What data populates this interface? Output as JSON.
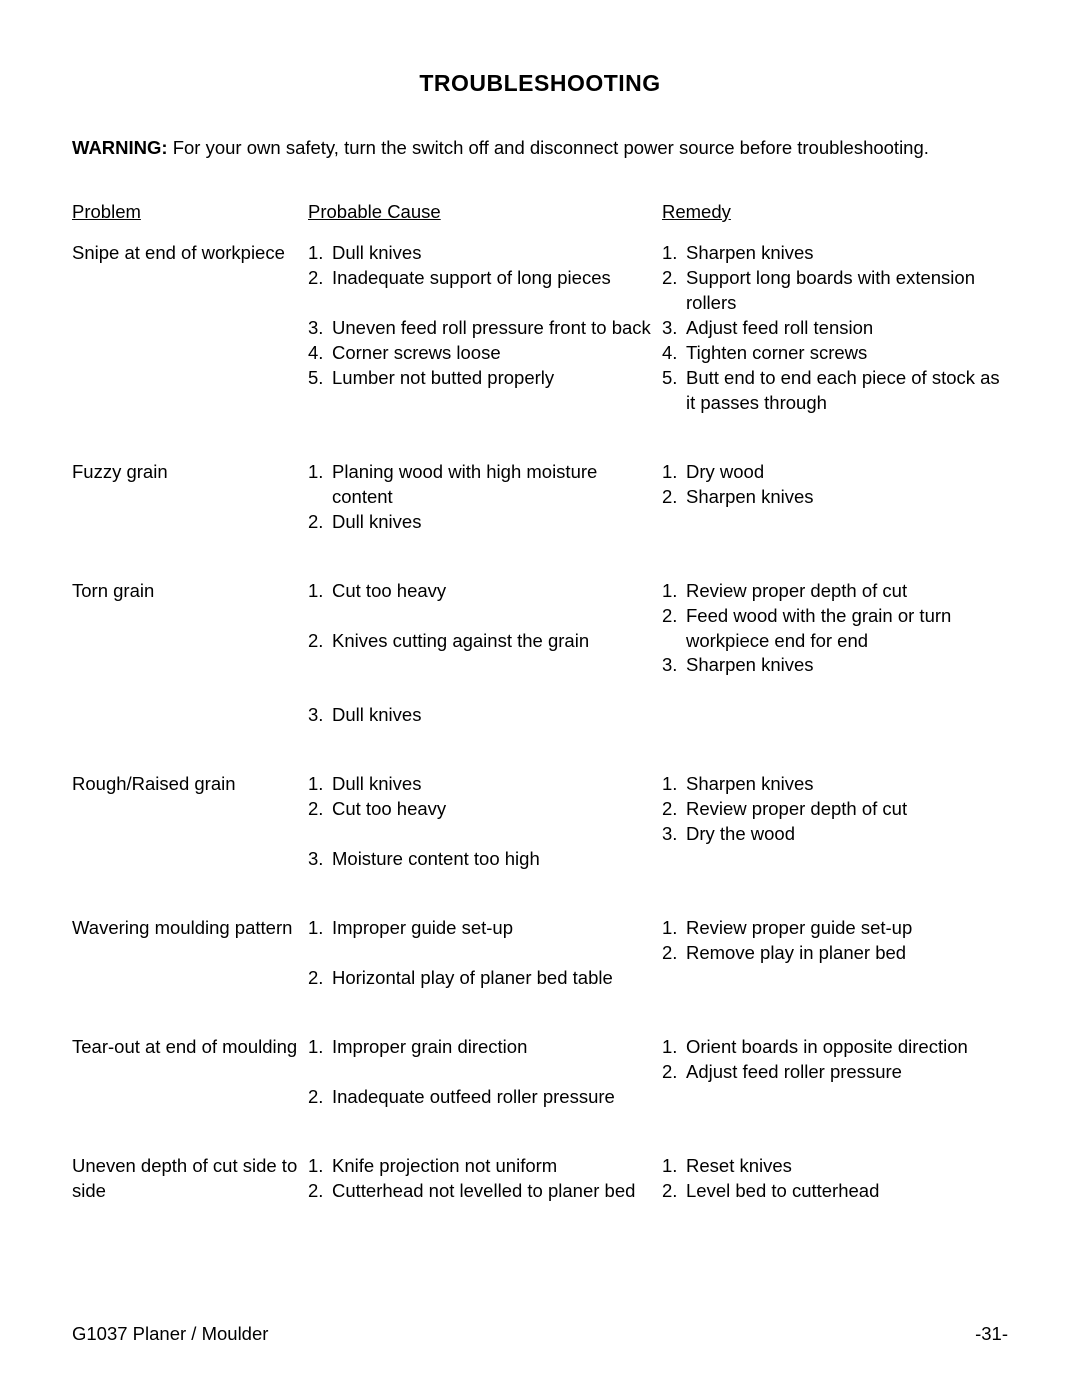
{
  "title": "TROUBLESHOOTING",
  "warning_label": "WARNING:",
  "warning_text": " For your own safety, turn the switch off and disconnect power source before troubleshooting.",
  "headers": {
    "problem": "Problem",
    "cause": "Probable Cause",
    "remedy": "Remedy"
  },
  "rows": [
    {
      "problem": "Snipe at end of workpiece",
      "causes": [
        "Dull knives",
        "Inadequate support of long pieces",
        "",
        "Uneven feed roll pressure front to back",
        "Corner screws loose",
        "Lumber not butted properly"
      ],
      "remedies": [
        "Sharpen knives",
        "Support long boards with extension rollers",
        "Adjust feed roll tension",
        "Tighten corner screws",
        "Butt end to end each piece of stock as it passes through"
      ]
    },
    {
      "problem": "Fuzzy grain",
      "causes": [
        "Planing wood with high moisture content",
        "Dull knives"
      ],
      "remedies": [
        "Dry wood",
        "Sharpen knives"
      ]
    },
    {
      "problem": "Torn grain",
      "causes": [
        "Cut too heavy",
        "",
        "Knives cutting against the grain",
        "",
        "",
        "Dull knives"
      ],
      "remedies": [
        "Review proper depth of cut",
        "Feed wood with the grain or turn workpiece end for end",
        "Sharpen knives"
      ]
    },
    {
      "problem": "Rough/Raised grain",
      "causes": [
        "Dull knives",
        "Cut too heavy",
        "",
        "Moisture content too high"
      ],
      "remedies": [
        "Sharpen knives",
        "Review proper depth of cut",
        "Dry the wood"
      ]
    },
    {
      "problem": "Wavering moulding pattern",
      "causes": [
        "Improper guide set-up",
        "",
        "Horizontal play of planer bed table"
      ],
      "remedies": [
        "Review proper guide set-up",
        "Remove play in planer bed"
      ]
    },
    {
      "problem": "Tear-out at end of moulding",
      "causes": [
        "Improper grain direction",
        "",
        "Inadequate outfeed roller pressure"
      ],
      "remedies": [
        "Orient boards in opposite direction",
        "Adjust feed roller pressure"
      ]
    },
    {
      "problem": "Uneven depth of cut side to side",
      "causes": [
        "Knife projection not uniform",
        "Cutterhead not levelled to planer bed"
      ],
      "remedies": [
        "Reset knives",
        "Level bed to cutterhead"
      ]
    }
  ],
  "footer": {
    "left": "G1037 Planer / Moulder",
    "right": "-31-"
  }
}
